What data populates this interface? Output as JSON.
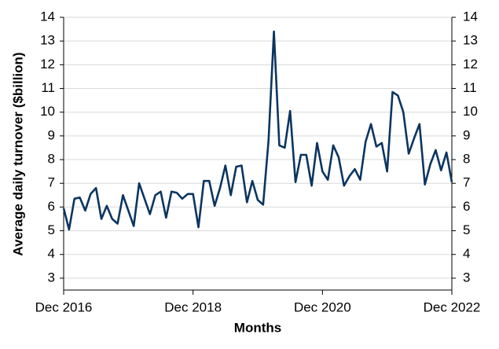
{
  "chart_data": {
    "type": "line",
    "x_label": "Months",
    "y_label": "Average daily turnover ($billion)",
    "x": [
      "2016-12",
      "2017-01",
      "2017-02",
      "2017-03",
      "2017-04",
      "2017-05",
      "2017-06",
      "2017-07",
      "2017-08",
      "2017-09",
      "2017-10",
      "2017-11",
      "2017-12",
      "2018-01",
      "2018-02",
      "2018-03",
      "2018-04",
      "2018-05",
      "2018-06",
      "2018-07",
      "2018-08",
      "2018-09",
      "2018-10",
      "2018-11",
      "2018-12",
      "2019-01",
      "2019-02",
      "2019-03",
      "2019-04",
      "2019-05",
      "2019-06",
      "2019-07",
      "2019-08",
      "2019-09",
      "2019-10",
      "2019-11",
      "2019-12",
      "2020-01",
      "2020-02",
      "2020-03",
      "2020-04",
      "2020-05",
      "2020-06",
      "2020-07",
      "2020-08",
      "2020-09",
      "2020-10",
      "2020-11",
      "2020-12",
      "2021-01",
      "2021-02",
      "2021-03",
      "2021-04",
      "2021-05",
      "2021-06",
      "2021-07",
      "2021-08",
      "2021-09",
      "2021-10",
      "2021-11",
      "2021-12",
      "2022-01",
      "2022-02",
      "2022-03",
      "2022-04",
      "2022-05",
      "2022-06",
      "2022-07",
      "2022-08",
      "2022-09",
      "2022-10",
      "2022-11",
      "2022-12"
    ],
    "series": [
      {
        "color": "#0b3560",
        "values": [
          5.95,
          5.05,
          6.35,
          6.4,
          5.85,
          6.55,
          6.8,
          5.5,
          6.05,
          5.5,
          5.3,
          6.5,
          5.85,
          5.2,
          7.0,
          6.35,
          5.7,
          6.5,
          6.65,
          5.55,
          6.65,
          6.6,
          6.35,
          6.55,
          6.55,
          5.15,
          7.1,
          7.1,
          6.05,
          6.8,
          7.75,
          6.5,
          7.7,
          7.75,
          6.2,
          7.1,
          6.3,
          6.1,
          8.8,
          13.4,
          8.6,
          8.5,
          10.05,
          7.05,
          8.2,
          8.2,
          6.9,
          8.7,
          7.5,
          7.15,
          8.6,
          8.1,
          6.9,
          7.3,
          7.6,
          7.15,
          8.75,
          9.5,
          8.55,
          8.7,
          7.5,
          10.85,
          10.7,
          10.0,
          8.25,
          8.9,
          9.5,
          6.95,
          7.8,
          8.4,
          7.55,
          8.3,
          7.05
        ]
      }
    ],
    "xticks": [
      {
        "value": "2016-12",
        "label": "Dec 2016"
      },
      {
        "value": "2018-12",
        "label": "Dec 2018"
      },
      {
        "value": "2020-12",
        "label": "Dec 2020"
      },
      {
        "value": "2022-12",
        "label": "Dec 2022"
      }
    ],
    "ylim": [
      2.5,
      14
    ],
    "yticks": [
      3,
      4,
      5,
      6,
      7,
      8,
      9,
      10,
      11,
      12,
      13,
      14
    ],
    "y2lim": [
      2.5,
      14
    ],
    "y2ticks": [
      3,
      4,
      5,
      6,
      7,
      8,
      9,
      10,
      11,
      12,
      13,
      14
    ],
    "grid": true
  }
}
